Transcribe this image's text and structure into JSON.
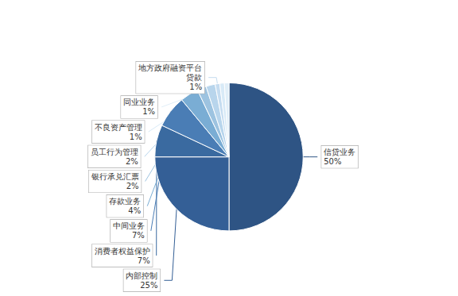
{
  "chart_data": {
    "type": "pie",
    "categories": [
      "信贷业务",
      "内部控制",
      "消费者权益保护",
      "中间业务",
      "存款业务",
      "银行承兑汇票",
      "员工行为管理",
      "地方政府融资平台\n贷款",
      "不良资产管理",
      "同业业务"
    ],
    "values": [
      50,
      25,
      7,
      7,
      4,
      2,
      2,
      1,
      1,
      1
    ],
    "value_labels": [
      "50%",
      "25%",
      "7%",
      "7%",
      "4%",
      "2%",
      "2%",
      "1%",
      "1%",
      "1%"
    ],
    "colors": [
      "#2E5484",
      "#345F96",
      "#3A6AA0",
      "#4A7DB5",
      "#7AADD4",
      "#9DC3E0",
      "#B8D5EC",
      "#C5DCF0",
      "#D8EAF7",
      "#E0EEF8"
    ],
    "data_labels": true
  }
}
